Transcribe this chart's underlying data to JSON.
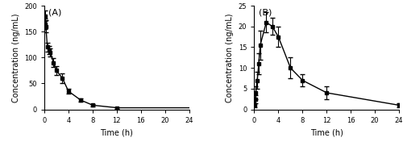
{
  "panel_A": {
    "label": "(A)",
    "x": [
      0.083,
      0.167,
      0.25,
      0.5,
      0.75,
      1.0,
      1.5,
      2.0,
      3.0,
      4.0,
      6.0,
      8.0,
      12.0
    ],
    "y": [
      180,
      165,
      160,
      120,
      115,
      110,
      90,
      75,
      60,
      35,
      18,
      8,
      3
    ],
    "yerr": [
      10,
      10,
      12,
      8,
      8,
      8,
      9,
      9,
      9,
      5,
      3,
      2.5,
      1.5
    ],
    "xlabel": "Time (h)",
    "ylabel": "Concentration (ng/mL)",
    "xlim": [
      0,
      24
    ],
    "ylim": [
      0,
      200
    ],
    "xticks": [
      0,
      4,
      8,
      12,
      16,
      20,
      24
    ],
    "yticks": [
      0,
      50,
      100,
      150,
      200
    ]
  },
  "panel_B": {
    "label": "(B)",
    "x": [
      0.083,
      0.167,
      0.25,
      0.5,
      0.75,
      1.0,
      2.0,
      3.0,
      4.0,
      6.0,
      8.0,
      12.0,
      24.0
    ],
    "y": [
      1.0,
      2.5,
      4.0,
      7.0,
      11.0,
      15.5,
      21.0,
      20.0,
      17.5,
      10.0,
      7.0,
      4.0,
      1.0
    ],
    "yerr": [
      0.5,
      1.0,
      1.5,
      2.0,
      2.5,
      3.5,
      2.5,
      2.0,
      2.5,
      2.5,
      1.5,
      1.5,
      0.5
    ],
    "xlabel": "Time (h)",
    "ylabel": "Concentration (ng/mL)",
    "xlim": [
      0,
      24
    ],
    "ylim": [
      0,
      25
    ],
    "xticks": [
      0,
      4,
      8,
      12,
      16,
      20,
      24
    ],
    "yticks": [
      0,
      5,
      10,
      15,
      20,
      25
    ]
  },
  "line_color": "#000000",
  "marker": "s",
  "markersize": 3.0,
  "linewidth": 1.0,
  "capsize": 2,
  "elinewidth": 0.8,
  "fontsize_label": 7,
  "fontsize_tick": 6,
  "fontsize_panel_label": 8
}
